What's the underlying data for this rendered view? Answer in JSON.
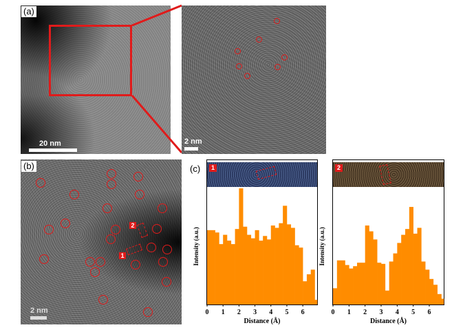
{
  "panels": {
    "a_label": "(a)",
    "b_label": "(b)",
    "c_label": "(c)",
    "a_scale": "20 nm",
    "a_zoom_scale": "2 nm",
    "b_scale": "2 nm",
    "badge_1": "1",
    "badge_2": "2"
  },
  "colors": {
    "bar": "#ff8c00",
    "marker": "#e01b1b"
  },
  "chart_data": [
    {
      "type": "bar",
      "badge": "1",
      "xlabel": "Distance (Å)",
      "ylabel": "Intensity (a.u.)",
      "xticks": [
        "0",
        "1",
        "2",
        "3",
        "4",
        "5",
        "6"
      ],
      "xlim": [
        0,
        6.9
      ],
      "ylim": [
        0,
        1.0
      ],
      "bin_width": 0.25,
      "x": [
        0.0,
        0.25,
        0.5,
        0.75,
        1.0,
        1.25,
        1.5,
        1.75,
        2.0,
        2.25,
        2.5,
        2.75,
        3.0,
        3.25,
        3.5,
        3.75,
        4.0,
        4.25,
        4.5,
        4.75,
        5.0,
        5.25,
        5.5,
        5.75,
        6.0,
        6.25,
        6.5,
        6.75
      ],
      "values": [
        0.64,
        0.64,
        0.62,
        0.52,
        0.6,
        0.55,
        0.52,
        0.65,
        1.0,
        0.67,
        0.6,
        0.57,
        0.64,
        0.55,
        0.59,
        0.56,
        0.68,
        0.66,
        0.7,
        0.85,
        0.69,
        0.66,
        0.51,
        0.49,
        0.2,
        0.26,
        0.3,
        0.04
      ]
    },
    {
      "type": "bar",
      "badge": "2",
      "xlabel": "Distance (Å)",
      "ylabel": "Intensity (a.u.)",
      "xticks": [
        "0",
        "1",
        "2",
        "3",
        "4",
        "5",
        "6"
      ],
      "xlim": [
        0,
        6.9
      ],
      "ylim": [
        0,
        1.0
      ],
      "bin_width": 0.25,
      "x": [
        0.0,
        0.25,
        0.5,
        0.75,
        1.0,
        1.25,
        1.5,
        1.75,
        2.0,
        2.25,
        2.5,
        2.75,
        3.0,
        3.25,
        3.5,
        3.75,
        4.0,
        4.25,
        4.5,
        4.75,
        5.0,
        5.25,
        5.5,
        5.75,
        6.0,
        6.25,
        6.5,
        6.75
      ],
      "values": [
        0.14,
        0.38,
        0.38,
        0.34,
        0.31,
        0.33,
        0.36,
        0.36,
        0.68,
        0.63,
        0.56,
        0.36,
        0.35,
        0.12,
        0.37,
        0.44,
        0.53,
        0.6,
        0.65,
        0.84,
        0.61,
        0.66,
        0.37,
        0.3,
        0.22,
        0.17,
        0.09,
        0.05
      ]
    }
  ]
}
